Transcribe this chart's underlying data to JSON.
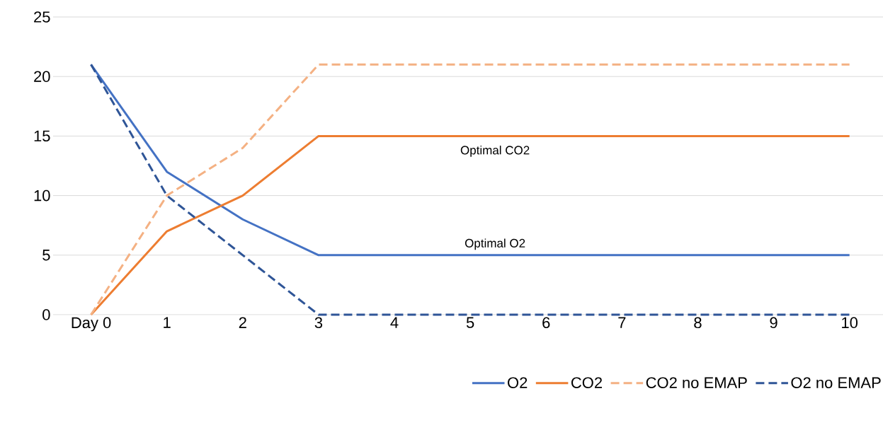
{
  "chart_data": {
    "type": "line",
    "categories": [
      "Day  0",
      "1",
      "2",
      "3",
      "4",
      "5",
      "6",
      "7",
      "8",
      "9",
      "10"
    ],
    "series": [
      {
        "name": "O2",
        "color": "#4472c4",
        "line_style": "solid",
        "values": [
          21,
          12,
          8,
          5,
          5,
          5,
          5,
          5,
          5,
          5,
          5
        ]
      },
      {
        "name": "CO2",
        "color": "#ed7d31",
        "line_style": "solid",
        "values": [
          0,
          7,
          10,
          15,
          15,
          15,
          15,
          15,
          15,
          15,
          15
        ]
      },
      {
        "name": "CO2 no EMAP",
        "color": "#f4b183",
        "line_style": "dashed",
        "values": [
          0,
          10,
          14,
          21,
          21,
          21,
          21,
          21,
          21,
          21,
          21
        ]
      },
      {
        "name": "O2 no EMAP",
        "color": "#2f5597",
        "line_style": "dashed",
        "values": [
          21,
          10,
          5,
          0,
          0,
          0,
          0,
          0,
          0,
          0,
          0
        ]
      }
    ],
    "ylim": [
      0,
      25
    ],
    "yticks": [
      0,
      5,
      10,
      15,
      20,
      25
    ],
    "grid": "y",
    "legend": "bottom",
    "marker": "none",
    "annotations": [
      {
        "text": "Optimal CO2",
        "x": "5",
        "y": 15
      },
      {
        "text": "Optimal O2",
        "x": "5",
        "y": 5
      }
    ]
  }
}
